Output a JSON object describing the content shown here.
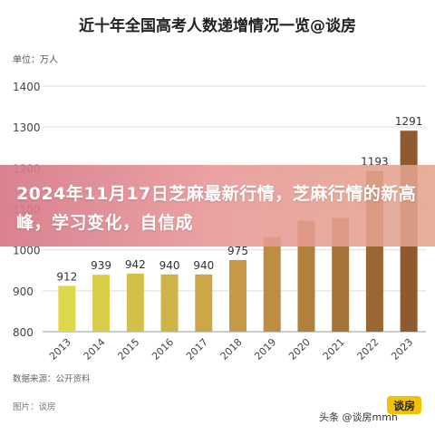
{
  "header": {
    "title": "近十年全国高考人数递增情况一览@谈房",
    "unit": "单位：万人"
  },
  "banner": {
    "text": "2024年11月17日芝麻最新行情，芝麻行情的新高峰，学习变化，自信成"
  },
  "footer": {
    "source": "数据来源：公开资料",
    "credit": "图片：谈房",
    "watermark": "头条 @谈房mmh",
    "logo_text": "谈房"
  },
  "colors": {
    "bar_light": "#ddd94a",
    "bar_mid": "#c79a47",
    "bar_dark": "#8f5a2f",
    "grid": "#dddddd",
    "banner": "#dc8a92"
  },
  "chart_data": {
    "type": "bar",
    "categories": [
      "2013",
      "2014",
      "2015",
      "2016",
      "2017",
      "2018",
      "2019",
      "2020",
      "2021",
      "2022",
      "2023"
    ],
    "values": [
      912,
      939,
      942,
      940,
      940,
      975,
      1031,
      1071,
      1078,
      1193,
      1291
    ],
    "value_labels": [
      "912",
      "939",
      "942",
      "940",
      "940",
      "975",
      "",
      "",
      "",
      "1193",
      "1291"
    ],
    "title": "近十年全国高考人数递增情况一览@谈房",
    "ylabel": "单位：万人",
    "ylim": [
      800,
      1400
    ],
    "yticks": [
      800,
      900,
      1000,
      1100,
      1200,
      1300,
      1400
    ],
    "grid": true
  }
}
